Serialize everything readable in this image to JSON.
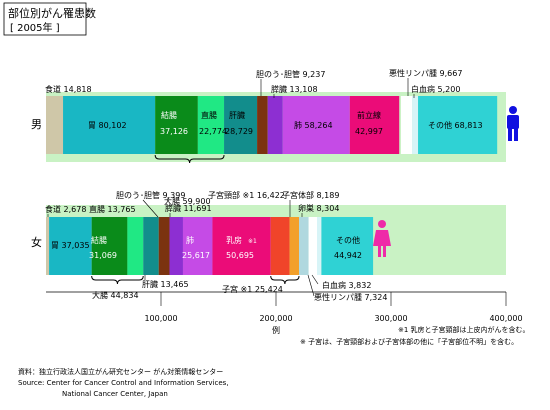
{
  "title_line1": "部位別がん罹患数",
  "title_line2": "[ 2005年 ]",
  "unit": "例",
  "colors": {
    "background_band": "#c9f2c4",
    "axis_line": "#000000",
    "male_icon": "#1010e0",
    "female_icon": "#ee2aa8",
    "brace": "#000000"
  },
  "chart_data": {
    "type": "bar",
    "orientation": "horizontal-stacked",
    "categories": [
      "男",
      "女"
    ],
    "xlim": [
      0,
      400000
    ],
    "xticks": [
      100000,
      200000,
      300000,
      400000
    ],
    "xtick_labels": [
      "100,000",
      "200,000",
      "300,000",
      "400,000"
    ],
    "xlabel": "例",
    "rows": [
      {
        "category": "男",
        "segments": [
          {
            "key": "m_shokudo",
            "value": 14818,
            "color": "#cfc7a8"
          },
          {
            "key": "m_i",
            "value": 80102,
            "color": "#19b7c4"
          },
          {
            "key": "m_ketsucho",
            "value": 37126,
            "color": "#0a8b1a"
          },
          {
            "key": "m_chokucho",
            "value": 22774,
            "color": "#20e884"
          },
          {
            "key": "m_kanzo",
            "value": 28729,
            "color": "#128d8c"
          },
          {
            "key": "m_tan",
            "value": 9237,
            "color": "#7b3310"
          },
          {
            "key": "m_sui",
            "value": 13108,
            "color": "#8d2fd2"
          },
          {
            "key": "m_hai",
            "value": 58264,
            "color": "#c54be6"
          },
          {
            "key": "m_zenritsu",
            "value": 42997,
            "color": "#eb0c78"
          },
          {
            "key": "m_gap",
            "value": 1500,
            "color": "#c9f2c4"
          },
          {
            "key": "m_akusei",
            "value": 9667,
            "color": "#ffffff"
          },
          {
            "key": "m_hakketsu",
            "value": 5200,
            "color": "#d8f4f7"
          },
          {
            "key": "m_sonota",
            "value": 68813,
            "color": "#2fd2d4"
          }
        ]
      },
      {
        "category": "女",
        "segments": [
          {
            "key": "f_shokudo",
            "value": 2678,
            "color": "#cfc7a8"
          },
          {
            "key": "f_i",
            "value": 37035,
            "color": "#19b7c4"
          },
          {
            "key": "f_ketsucho",
            "value": 31069,
            "color": "#0a8b1a"
          },
          {
            "key": "f_chokucho",
            "value": 13765,
            "color": "#20e884"
          },
          {
            "key": "f_kanzo",
            "value": 13465,
            "color": "#128d8c"
          },
          {
            "key": "f_tan",
            "value": 9399,
            "color": "#7b3310"
          },
          {
            "key": "f_sui",
            "value": 11691,
            "color": "#8d2fd2"
          },
          {
            "key": "f_hai",
            "value": 25617,
            "color": "#c54be6"
          },
          {
            "key": "f_nyu",
            "value": 50695,
            "color": "#eb0c78"
          },
          {
            "key": "f_shikyukei",
            "value": 16422,
            "color": "#f0442a"
          },
          {
            "key": "f_shikyutai",
            "value": 8189,
            "color": "#f3a02a"
          },
          {
            "key": "f_ransou",
            "value": 8304,
            "color": "#b0d8df"
          },
          {
            "key": "f_akusei",
            "value": 7324,
            "color": "#ffffff"
          },
          {
            "key": "f_hakketsu",
            "value": 3832,
            "color": "#d8f4f7"
          },
          {
            "key": "f_sonota",
            "value": 44942,
            "color": "#2fd2d4"
          }
        ]
      }
    ],
    "braces": [
      {
        "row": "男",
        "from": "m_ketsucho",
        "to": "m_chokucho",
        "label": "大腸 59,900"
      },
      {
        "row": "女",
        "from": "f_ketsucho",
        "to": "f_chokucho",
        "label": "大腸 44,834"
      },
      {
        "row": "女",
        "from": "f_shikyukei",
        "to": "f_shikyutai",
        "label": "子宮 ※1 25,424"
      }
    ]
  },
  "labels": {
    "male_row": "男",
    "female_row": "女",
    "m_shokudo": "食道 14,818",
    "m_i": "胃 80,102",
    "m_ketsucho_1": "結腸",
    "m_ketsucho_2": "37,126",
    "m_chokucho_1": "直腸",
    "m_chokucho_2": "22,774",
    "m_kanzo_1": "肝臓",
    "m_kanzo_2": "28,729",
    "m_tan": "胆のう･胆管 9,237",
    "m_sui": "膵臓 13,108",
    "m_hai": "肺 58,264",
    "m_zenritsu_1": "前立線",
    "m_zenritsu_2": "42,997",
    "m_akusei": "悪性リンパ腫 9,667",
    "m_hakketsu": "白血病 5,200",
    "m_sonota": "その他 68,813",
    "m_daicho": "大腸 59,900",
    "f_shokudo": "食道 2,678",
    "f_i": "胃 37,035",
    "f_ketsucho_1": "結腸",
    "f_ketsucho_2": "31,069",
    "f_chokucho": "直腸 13,765",
    "f_kanzo": "肝臓 13,465",
    "f_tan": "胆のう･胆管 9,399",
    "f_sui": "膵臓 11,691",
    "f_hai_1": "肺",
    "f_hai_2": "25,617",
    "f_nyu_1": "乳房",
    "f_nyu_mark": "※1",
    "f_nyu_2": "50,695",
    "f_shikyukei": "子宮頸部 ※1 16,422",
    "f_shikyutai": "子宮体部 8,189",
    "f_ransou": "卵巣 8,304",
    "f_akusei": "悪性リンパ腫 7,324",
    "f_hakketsu": "白血病 3,832",
    "f_sonota_1": "その他",
    "f_sonota_2": "44,942",
    "f_daicho": "大腸 44,834",
    "f_shikyu": "子宮 ※1 25,424"
  },
  "notes": {
    "note1": "※1 乳房と子宮頸部は上皮内がんを含む。",
    "note2": "※ 子宮は、子宮頸部および子宮体部の他に「子宮部位不明」を含む。"
  },
  "source": {
    "line1": "資料：独立行政法人国立がん研究センター がん対策情報センター",
    "line2": "Source:  Center for Cancer Control and Information Services,",
    "line3": "National Cancer Center, Japan"
  }
}
